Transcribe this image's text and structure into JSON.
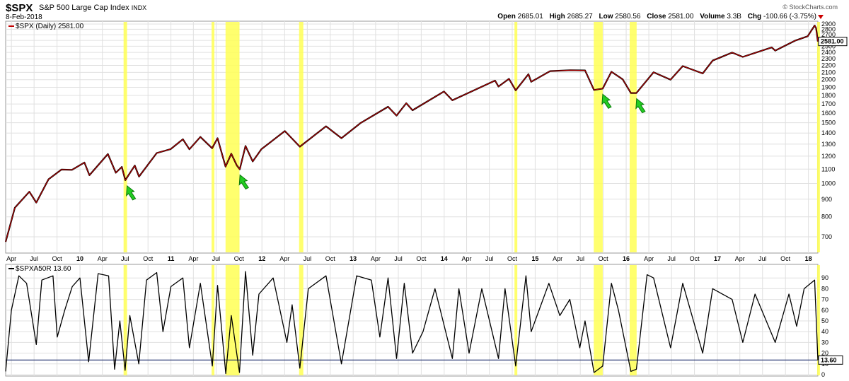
{
  "header": {
    "symbol": "$SPX",
    "name": "S&P 500 Large Cap Index",
    "exchange": "INDX",
    "date": "8-Feb-2018",
    "brand": "© StockCharts.com",
    "quote": {
      "open_label": "Open",
      "open": "2685.01",
      "high_label": "High",
      "high": "2685.27",
      "low_label": "Low",
      "low": "2580.56",
      "close_label": "Close",
      "close": "2581.00",
      "volume_label": "Volume",
      "volume": "3.3B",
      "chg_label": "Chg",
      "chg": "-100.66 (-3.75%)"
    }
  },
  "colors": {
    "price_line": "#c00000",
    "price_bar": "#000000",
    "highlight": "#ffff55",
    "arrow": "#22cc22",
    "indicator_line": "#000000",
    "ref_line": "#1a2a6a",
    "grid": "#e0e0e0"
  },
  "icons": [
    "green-arrow-icon",
    "down-triangle-icon"
  ],
  "chart_data": [
    {
      "type": "line",
      "label": "$SPX (Daily) 2581.00",
      "last_value_label": "2581.00",
      "yscale": "log",
      "ylim": [
        640,
        2900
      ],
      "yticks": [
        700,
        800,
        900,
        1000,
        1100,
        1200,
        1300,
        1400,
        1500,
        1600,
        1700,
        1800,
        1900,
        2000,
        2100,
        2200,
        2300,
        2400,
        2500,
        2600,
        2700,
        2800,
        2900
      ],
      "x_ticks": [
        "Apr",
        "Jul",
        "Oct",
        "10",
        "Apr",
        "Jul",
        "Oct",
        "11",
        "Apr",
        "Jul",
        "Oct",
        "12",
        "Apr",
        "Jul",
        "Oct",
        "13",
        "Apr",
        "Jul",
        "Oct",
        "14",
        "Apr",
        "Jul",
        "Oct",
        "15",
        "Apr",
        "Jul",
        "Oct",
        "16",
        "Apr",
        "Jul",
        "Oct",
        "17",
        "Apr",
        "Jul",
        "Oct",
        "18"
      ],
      "x_ticks_bold": [
        "10",
        "11",
        "12",
        "13",
        "14",
        "15",
        "16",
        "17",
        "18"
      ],
      "grid": true,
      "series": [
        {
          "points": [
            [
              "2009-03-09",
              677
            ],
            [
              "2009-04-15",
              850
            ],
            [
              "2009-06-12",
              946
            ],
            [
              "2009-07-10",
              880
            ],
            [
              "2009-08-28",
              1028
            ],
            [
              "2009-10-19",
              1097
            ],
            [
              "2009-11-30",
              1095
            ],
            [
              "2010-01-19",
              1150
            ],
            [
              "2010-02-08",
              1056
            ],
            [
              "2010-04-23",
              1217
            ],
            [
              "2010-05-25",
              1074
            ],
            [
              "2010-06-18",
              1117
            ],
            [
              "2010-07-02",
              1022
            ],
            [
              "2010-08-09",
              1127
            ],
            [
              "2010-08-26",
              1047
            ],
            [
              "2010-11-05",
              1225
            ],
            [
              "2010-12-31",
              1258
            ],
            [
              "2011-02-18",
              1343
            ],
            [
              "2011-03-16",
              1256
            ],
            [
              "2011-04-29",
              1364
            ],
            [
              "2011-06-15",
              1265
            ],
            [
              "2011-07-07",
              1353
            ],
            [
              "2011-08-08",
              1119
            ],
            [
              "2011-08-31",
              1219
            ],
            [
              "2011-09-22",
              1129
            ],
            [
              "2011-10-04",
              1099
            ],
            [
              "2011-10-27",
              1284
            ],
            [
              "2011-11-25",
              1158
            ],
            [
              "2011-12-30",
              1257
            ],
            [
              "2012-04-02",
              1419
            ],
            [
              "2012-06-01",
              1278
            ],
            [
              "2012-09-14",
              1465
            ],
            [
              "2012-11-15",
              1353
            ],
            [
              "2013-01-31",
              1498
            ],
            [
              "2013-05-21",
              1669
            ],
            [
              "2013-06-24",
              1573
            ],
            [
              "2013-08-02",
              1709
            ],
            [
              "2013-08-27",
              1630
            ],
            [
              "2013-12-31",
              1848
            ],
            [
              "2014-02-03",
              1742
            ],
            [
              "2014-07-24",
              1988
            ],
            [
              "2014-08-07",
              1910
            ],
            [
              "2014-09-18",
              2011
            ],
            [
              "2014-10-15",
              1862
            ],
            [
              "2014-12-05",
              2075
            ],
            [
              "2014-12-16",
              1972
            ],
            [
              "2015-03-02",
              2117
            ],
            [
              "2015-05-21",
              2131
            ],
            [
              "2015-07-20",
              2128
            ],
            [
              "2015-08-25",
              1867
            ],
            [
              "2015-09-29",
              1884
            ],
            [
              "2015-11-03",
              2109
            ],
            [
              "2015-12-18",
              2005
            ],
            [
              "2016-01-20",
              1829
            ],
            [
              "2016-02-11",
              1829
            ],
            [
              "2016-04-20",
              2102
            ],
            [
              "2016-06-27",
              2000
            ],
            [
              "2016-08-15",
              2190
            ],
            [
              "2016-11-03",
              2085
            ],
            [
              "2016-12-13",
              2272
            ],
            [
              "2017-03-01",
              2396
            ],
            [
              "2017-04-13",
              2328
            ],
            [
              "2017-08-07",
              2480
            ],
            [
              "2017-08-21",
              2428
            ],
            [
              "2017-11-08",
              2594
            ],
            [
              "2017-12-29",
              2673
            ],
            [
              "2018-01-26",
              2872
            ],
            [
              "2018-02-01",
              2821
            ],
            [
              "2018-02-08",
              2581
            ]
          ]
        }
      ],
      "highlight_dates": [
        [
          "2010-06-25",
          "2010-07-09"
        ],
        [
          "2011-06-13",
          "2011-06-24"
        ],
        [
          "2011-08-08",
          "2011-10-03"
        ],
        [
          "2012-05-29",
          "2012-06-15"
        ],
        [
          "2014-10-10",
          "2014-10-17"
        ],
        [
          "2015-08-24",
          "2015-09-29"
        ],
        [
          "2016-01-15",
          "2016-02-12"
        ],
        [
          "2018-02-05",
          "2018-02-09"
        ]
      ],
      "arrows": [
        "2010-07-09",
        "2011-10-05",
        "2015-09-29",
        "2016-02-12"
      ]
    },
    {
      "type": "line",
      "label": "$SPXA50R 13.60",
      "last_value_label": "13.60",
      "ylim": [
        0,
        100
      ],
      "yticks": [
        0,
        10,
        20,
        30,
        40,
        50,
        60,
        70,
        80,
        90
      ],
      "reference_line": 13.6,
      "series": [
        {
          "points": [
            [
              "2009-03-09",
              3
            ],
            [
              "2009-04-01",
              60
            ],
            [
              "2009-05-01",
              92
            ],
            [
              "2009-06-01",
              85
            ],
            [
              "2009-07-10",
              28
            ],
            [
              "2009-08-01",
              88
            ],
            [
              "2009-09-15",
              92
            ],
            [
              "2009-10-02",
              35
            ],
            [
              "2009-11-01",
              60
            ],
            [
              "2009-12-01",
              82
            ],
            [
              "2010-01-01",
              90
            ],
            [
              "2010-02-05",
              12
            ],
            [
              "2010-03-15",
              94
            ],
            [
              "2010-04-26",
              92
            ],
            [
              "2010-05-20",
              5
            ],
            [
              "2010-06-10",
              50
            ],
            [
              "2010-07-01",
              4
            ],
            [
              "2010-07-20",
              55
            ],
            [
              "2010-08-25",
              10
            ],
            [
              "2010-09-25",
              88
            ],
            [
              "2010-11-05",
              95
            ],
            [
              "2010-11-30",
              40
            ],
            [
              "2011-01-01",
              82
            ],
            [
              "2011-02-18",
              90
            ],
            [
              "2011-03-16",
              25
            ],
            [
              "2011-04-29",
              85
            ],
            [
              "2011-06-16",
              8
            ],
            [
              "2011-07-07",
              83
            ],
            [
              "2011-08-09",
              1
            ],
            [
              "2011-08-31",
              55
            ],
            [
              "2011-10-03",
              2
            ],
            [
              "2011-10-27",
              96
            ],
            [
              "2011-11-25",
              18
            ],
            [
              "2011-12-20",
              75
            ],
            [
              "2012-02-15",
              90
            ],
            [
              "2012-04-10",
              30
            ],
            [
              "2012-05-01",
              65
            ],
            [
              "2012-06-01",
              6
            ],
            [
              "2012-07-05",
              80
            ],
            [
              "2012-09-14",
              92
            ],
            [
              "2012-11-15",
              10
            ],
            [
              "2013-01-15",
              92
            ],
            [
              "2013-03-15",
              88
            ],
            [
              "2013-04-18",
              35
            ],
            [
              "2013-05-21",
              90
            ],
            [
              "2013-06-24",
              15
            ],
            [
              "2013-07-25",
              85
            ],
            [
              "2013-08-27",
              20
            ],
            [
              "2013-10-08",
              40
            ],
            [
              "2013-11-25",
              80
            ],
            [
              "2014-02-03",
              15
            ],
            [
              "2014-03-01",
              80
            ],
            [
              "2014-04-11",
              20
            ],
            [
              "2014-06-01",
              80
            ],
            [
              "2014-08-07",
              15
            ],
            [
              "2014-09-02",
              80
            ],
            [
              "2014-10-15",
              8
            ],
            [
              "2014-11-25",
              92
            ],
            [
              "2014-12-16",
              40
            ],
            [
              "2015-02-25",
              85
            ],
            [
              "2015-04-10",
              55
            ],
            [
              "2015-05-20",
              70
            ],
            [
              "2015-06-29",
              25
            ],
            [
              "2015-07-20",
              50
            ],
            [
              "2015-08-25",
              2
            ],
            [
              "2015-09-29",
              8
            ],
            [
              "2015-11-03",
              85
            ],
            [
              "2015-12-01",
              60
            ],
            [
              "2016-01-20",
              3
            ],
            [
              "2016-02-11",
              5
            ],
            [
              "2016-03-25",
              93
            ],
            [
              "2016-04-20",
              90
            ],
            [
              "2016-06-27",
              25
            ],
            [
              "2016-08-15",
              85
            ],
            [
              "2016-11-03",
              20
            ],
            [
              "2016-12-13",
              80
            ],
            [
              "2017-03-01",
              70
            ],
            [
              "2017-04-13",
              30
            ],
            [
              "2017-06-01",
              75
            ],
            [
              "2017-08-21",
              30
            ],
            [
              "2017-10-15",
              75
            ],
            [
              "2017-11-15",
              45
            ],
            [
              "2017-12-15",
              80
            ],
            [
              "2018-01-26",
              88
            ],
            [
              "2018-02-08",
              13.6
            ]
          ]
        }
      ],
      "highlight_dates": [
        [
          "2010-06-25",
          "2010-07-09"
        ],
        [
          "2011-06-13",
          "2011-06-24"
        ],
        [
          "2011-08-08",
          "2011-10-03"
        ],
        [
          "2012-05-29",
          "2012-06-15"
        ],
        [
          "2014-10-10",
          "2014-10-17"
        ],
        [
          "2015-08-24",
          "2015-09-29"
        ],
        [
          "2016-01-15",
          "2016-02-12"
        ],
        [
          "2018-02-05",
          "2018-02-09"
        ]
      ]
    }
  ]
}
